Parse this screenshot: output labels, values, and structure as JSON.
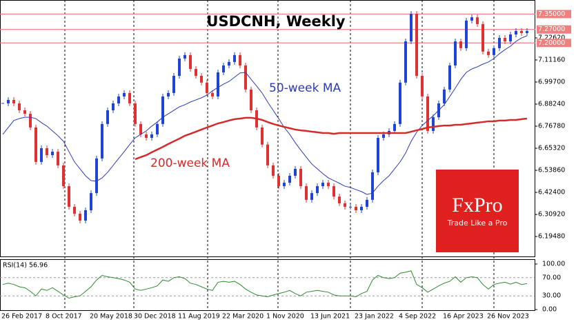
{
  "chart_data": {
    "type": "candlestick",
    "title": "USDCNH, Weekly",
    "up_color": "#1e44d6",
    "down_color": "#e03030",
    "categories": [
      "26 Feb 2017",
      null,
      null,
      null,
      null,
      null,
      null,
      null,
      "8 Oct 2017",
      null,
      null,
      null,
      null,
      null,
      null,
      null,
      "20 May 2018",
      null,
      null,
      null,
      null,
      null,
      null,
      null,
      "30 Dec 2018",
      null,
      null,
      null,
      null,
      null,
      null,
      null,
      "11 Aug 2019",
      null,
      null,
      null,
      null,
      null,
      null,
      null,
      "22 Mar 2020",
      null,
      null,
      null,
      null,
      null,
      null,
      null,
      "1 Nov 2020",
      null,
      null,
      null,
      null,
      null,
      null,
      null,
      "13 Jun 2021",
      null,
      null,
      null,
      null,
      null,
      null,
      null,
      "23 Jan 2022",
      null,
      null,
      null,
      null,
      null,
      null,
      null,
      "4 Sep 2022",
      null,
      null,
      null,
      null,
      null,
      null,
      null,
      "16 Apr 2023",
      null,
      null,
      null,
      null,
      null,
      null,
      null,
      "26 Nov 2023",
      null,
      null,
      null,
      null,
      null,
      null,
      null
    ],
    "values": [
      6.886,
      6.904,
      6.886,
      6.85,
      6.832,
      6.761,
      6.582,
      6.653,
      6.617,
      6.635,
      6.564,
      6.456,
      6.349,
      6.313,
      6.277,
      6.331,
      6.42,
      6.6,
      6.779,
      6.85,
      6.886,
      6.922,
      6.94,
      6.886,
      6.779,
      6.725,
      6.707,
      6.725,
      6.779,
      6.922,
      6.94,
      7.029,
      7.119,
      7.137,
      7.065,
      7.029,
      6.994,
      6.94,
      6.922,
      7.047,
      7.083,
      7.101,
      7.137,
      7.083,
      6.958,
      6.85,
      6.761,
      6.672,
      6.564,
      6.51,
      6.456,
      6.474,
      6.51,
      6.546,
      6.456,
      6.385,
      6.42,
      6.456,
      6.474,
      6.456,
      6.402,
      6.367,
      6.349,
      6.349,
      6.331,
      6.349,
      6.385,
      6.528,
      6.707,
      6.725,
      6.743,
      6.779,
      6.994,
      7.208,
      7.351,
      7.029,
      6.922,
      6.743,
      6.814,
      6.886,
      6.958,
      7.083,
      7.208,
      7.173,
      7.316,
      7.333,
      7.298,
      7.155,
      7.137,
      7.173,
      7.226,
      7.208,
      7.244,
      7.262,
      7.251,
      7.262
    ],
    "series": [
      {
        "name": "50-week MA",
        "color": "#2e3bb5",
        "values": [
          6.725,
          6.761,
          6.797,
          6.807,
          6.814,
          6.814,
          6.807,
          6.786,
          6.768,
          6.743,
          6.718,
          6.689,
          6.635,
          6.582,
          6.546,
          6.51,
          6.485,
          6.482,
          6.499,
          6.528,
          6.564,
          6.6,
          6.635,
          6.672,
          6.707,
          6.725,
          6.743,
          6.768,
          6.789,
          6.814,
          6.832,
          6.85,
          6.868,
          6.879,
          6.893,
          6.904,
          6.915,
          6.929,
          6.951,
          6.969,
          6.986,
          7.0,
          7.022,
          7.044,
          7.047,
          7.011,
          6.976,
          6.94,
          6.893,
          6.85,
          6.807,
          6.761,
          6.725,
          6.682,
          6.643,
          6.607,
          6.571,
          6.546,
          6.521,
          6.499,
          6.485,
          6.471,
          6.456,
          6.449,
          6.438,
          6.428,
          6.413,
          6.42,
          6.456,
          6.485,
          6.51,
          6.546,
          6.582,
          6.628,
          6.689,
          6.736,
          6.771,
          6.797,
          6.822,
          6.85,
          6.879,
          6.922,
          6.965,
          7.011,
          7.047,
          7.065,
          7.076,
          7.09,
          7.101,
          7.119,
          7.144,
          7.165,
          7.183,
          7.208,
          7.226,
          7.237
        ]
      },
      {
        "name": "200-week MA",
        "color": "#d42a2a",
        "values": [
          null,
          null,
          null,
          null,
          null,
          null,
          null,
          null,
          null,
          null,
          null,
          null,
          null,
          null,
          null,
          null,
          null,
          null,
          null,
          null,
          null,
          null,
          null,
          null,
          6.596,
          6.607,
          6.617,
          6.632,
          6.646,
          6.66,
          6.675,
          6.689,
          6.703,
          6.718,
          6.728,
          6.739,
          6.75,
          6.761,
          6.771,
          6.782,
          6.789,
          6.797,
          6.804,
          6.807,
          6.811,
          6.811,
          6.807,
          6.8,
          6.789,
          6.779,
          6.771,
          6.764,
          6.757,
          6.75,
          6.746,
          6.743,
          6.739,
          6.736,
          6.732,
          6.732,
          6.728,
          6.732,
          6.732,
          6.732,
          6.732,
          6.732,
          6.732,
          6.732,
          6.732,
          6.732,
          6.732,
          6.732,
          6.732,
          6.732,
          6.739,
          6.746,
          6.753,
          6.761,
          6.764,
          6.768,
          6.771,
          6.771,
          6.775,
          6.775,
          6.779,
          6.782,
          6.786,
          6.789,
          6.793,
          6.793,
          6.797,
          6.797,
          6.8,
          6.8,
          6.804,
          6.807
        ]
      }
    ],
    "ylim": [
      6.091,
      7.423
    ],
    "yticks": [
      {
        "value": 6.1948,
        "label": "6.19480"
      },
      {
        "value": 6.3092,
        "label": "6.30920"
      },
      {
        "value": 6.424,
        "label": "6.42400"
      },
      {
        "value": 6.5386,
        "label": "6.53860"
      },
      {
        "value": 6.6532,
        "label": "6.65320"
      },
      {
        "value": 6.7678,
        "label": "6.76780"
      },
      {
        "value": 6.8824,
        "label": "6.88240"
      },
      {
        "value": 6.997,
        "label": "6.99700"
      },
      {
        "value": 7.1116,
        "label": "7.11160"
      },
      {
        "value": 7.2262,
        "label": "7.22620"
      }
    ],
    "levels": [
      {
        "value": 7.35,
        "label": "7.35000"
      },
      {
        "value": 7.27,
        "label": "7.27000"
      },
      {
        "value": 7.2,
        "label": "7.20000"
      }
    ],
    "level_color": "#f08080",
    "rsi": {
      "title": "RSI(14) 56.96",
      "color": "#2e8b2e",
      "ylim": [
        0,
        100
      ],
      "yticks": [
        {
          "value": 100,
          "label": "100.00"
        },
        {
          "value": 70,
          "label": "70.00"
        },
        {
          "value": 30,
          "label": "30.00"
        },
        {
          "value": 0,
          "label": "0.00"
        }
      ],
      "values": [
        55,
        58,
        55,
        50,
        48,
        40,
        30,
        45,
        42,
        48,
        40,
        32,
        25,
        28,
        30,
        40,
        50,
        65,
        75,
        72,
        70,
        68,
        65,
        60,
        45,
        42,
        45,
        48,
        52,
        65,
        62,
        70,
        72,
        68,
        58,
        55,
        50,
        45,
        42,
        60,
        62,
        60,
        62,
        55,
        45,
        38,
        32,
        30,
        28,
        32,
        35,
        38,
        42,
        35,
        30,
        38,
        40,
        42,
        40,
        38,
        32,
        30,
        30,
        30,
        28,
        35,
        40,
        65,
        75,
        70,
        68,
        70,
        80,
        82,
        85,
        55,
        48,
        38,
        45,
        52,
        58,
        62,
        72,
        60,
        70,
        72,
        70,
        55,
        45,
        55,
        58,
        60,
        56,
        60,
        55,
        57
      ]
    },
    "logo": {
      "brand": "FxPro",
      "tagline": "Trade Like a Pro",
      "color": "#e0201e"
    }
  }
}
